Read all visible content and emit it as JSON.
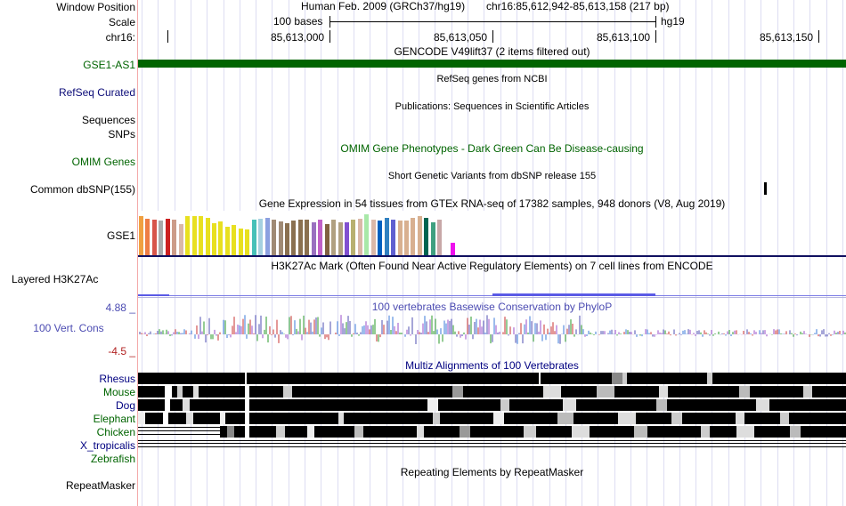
{
  "labels": {
    "window_position": "Window Position",
    "scale": "Scale",
    "chrom": "chr16:",
    "gse1_as1": "GSE1-AS1",
    "refseq": "RefSeq Curated",
    "sequences": "Sequences",
    "snps": "SNPs",
    "omim_genes": "OMIM Genes",
    "common_dbsnp": "Common dbSNP(155)",
    "gse1": "GSE1",
    "layered_h3k27ac": "Layered H3K27Ac",
    "cons_max": "4.88 _",
    "vert_cons": "100 Vert. Cons",
    "cons_min": "-4.5 _",
    "species": [
      {
        "name": "Rhesus",
        "color": "#000080"
      },
      {
        "name": "Mouse",
        "color": "#006400"
      },
      {
        "name": "Dog",
        "color": "#000080"
      },
      {
        "name": "Elephant",
        "color": "#006400"
      },
      {
        "name": "Chicken",
        "color": "#006400"
      },
      {
        "name": "X_tropicalis",
        "color": "#000080"
      },
      {
        "name": "Zebrafish",
        "color": "#006400"
      }
    ],
    "repeatmasker": "RepeatMasker"
  },
  "header": {
    "assembly": "Human Feb. 2009 (GRCh37/hg19)",
    "position": "chr16:85,612,942-85,613,158 (217 bp)",
    "scale_text": "100 bases",
    "scale_db": "hg19",
    "coords": [
      "85,613,000",
      "85,613,050",
      "85,613,100",
      "85,613,150"
    ]
  },
  "tracks": {
    "gencode_title": "GENCODE V49lift37 (2 items filtered out)",
    "refseq_title": "RefSeq genes from NCBI",
    "publications_title": "Publications: Sequences in Scientific Articles",
    "omim_title": "OMIM Gene Phenotypes - Dark Green Can Be Disease-causing",
    "dbsnp_title": "Short Genetic Variants from dbSNP release 155",
    "gtex_title": "Gene Expression in 54 tissues from GTEx RNA-seq of 17382 samples, 948 donors (V8, Aug 2019)",
    "h3k27ac_title": "H3K27Ac Mark (Often Found Near Active Regulatory Elements) on 7 cell lines from ENCODE",
    "cons_title": "100 vertebrates Basewise Conservation by PhyloP",
    "multiz_title": "Multiz Alignments of 100 Vertebrates",
    "repeatmasker_title": "Repeating Elements by RepeatMasker"
  },
  "colors": {
    "gencode": "#006400",
    "refseq_label": "#0c0c78",
    "omim": "#006400",
    "cons": "#4c4cb2",
    "h3k27ac": "#5a5ae6",
    "divider": "#f4aaaa"
  },
  "gtex_colors": [
    "#f0a040",
    "#ee7d44",
    "#d7554a",
    "#aaaaaa",
    "#cc2020",
    "#cc9b88",
    "#dab8a8",
    "#e8e020",
    "#e8e020",
    "#e8e020",
    "#e8e020",
    "#e8e020",
    "#e8e020",
    "#e8e020",
    "#e8e020",
    "#e8e020",
    "#e8e020",
    "#46c0b8",
    "#a6d0e0",
    "#8ca0e0",
    "#a08a74",
    "#a08a74",
    "#8a7050",
    "#8a7050",
    "#8a7050",
    "#8a7050",
    "#9a70c0",
    "#c060c8",
    "#806040",
    "#b0a080",
    "#b0a080",
    "#8050d0",
    "#b8b070",
    "#dab8a8",
    "#a8e8a8",
    "#dab8a8",
    "#0060c0",
    "#3080c0",
    "#6060d0",
    "#d8b090",
    "#d8b090",
    "#d8b090",
    "#d8b090",
    "#006450",
    "#3fa080",
    "#c8a8a8",
    "#ffffff",
    "#ee10ee"
  ],
  "gtex_values": [
    0.95,
    0.9,
    0.88,
    0.85,
    0.9,
    0.88,
    0.75,
    0.95,
    0.95,
    0.95,
    0.92,
    0.78,
    0.82,
    0.7,
    0.73,
    0.65,
    0.62,
    0.88,
    0.9,
    0.92,
    0.88,
    0.83,
    0.78,
    0.85,
    0.88,
    0.86,
    0.8,
    0.88,
    0.75,
    0.88,
    0.8,
    0.8,
    0.88,
    0.9,
    1.0,
    0.88,
    0.85,
    0.92,
    0.88,
    0.85,
    0.85,
    0.92,
    0.95,
    0.92,
    0.8,
    0.88,
    0.75,
    0.3
  ],
  "multiz_rows": [
    [
      [
        0,
        120,
        "#000"
      ],
      [
        120,
        2,
        "#fff"
      ],
      [
        122,
        328,
        "#000"
      ],
      [
        450,
        2,
        "#fff"
      ],
      [
        452,
        80,
        "#000"
      ],
      [
        532,
        12,
        "#888"
      ],
      [
        544,
        5,
        "#ccc"
      ],
      [
        549,
        90,
        "#000"
      ],
      [
        639,
        6,
        "#ccc"
      ],
      [
        645,
        150,
        "#000"
      ]
    ],
    [
      [
        0,
        30,
        "#000"
      ],
      [
        30,
        8,
        "#fff"
      ],
      [
        38,
        6,
        "#000"
      ],
      [
        44,
        6,
        "#ccc"
      ],
      [
        50,
        12,
        "#000"
      ],
      [
        62,
        6,
        "#ddd"
      ],
      [
        68,
        52,
        "#000"
      ],
      [
        120,
        5,
        "#fff"
      ],
      [
        125,
        38,
        "#000"
      ],
      [
        163,
        10,
        "#ccc"
      ],
      [
        173,
        180,
        "#000"
      ],
      [
        353,
        12,
        "#999"
      ],
      [
        365,
        90,
        "#000"
      ],
      [
        455,
        20,
        "#ddd"
      ],
      [
        475,
        40,
        "#000"
      ],
      [
        515,
        20,
        "#bbb"
      ],
      [
        535,
        50,
        "#000"
      ],
      [
        585,
        10,
        "#ddd"
      ],
      [
        595,
        80,
        "#000"
      ],
      [
        675,
        12,
        "#bbb"
      ],
      [
        687,
        60,
        "#000"
      ],
      [
        747,
        10,
        "#ccc"
      ],
      [
        757,
        38,
        "#000"
      ]
    ],
    [
      [
        0,
        30,
        "#000"
      ],
      [
        30,
        6,
        "#fff"
      ],
      [
        36,
        14,
        "#000"
      ],
      [
        50,
        8,
        "#ddd"
      ],
      [
        58,
        62,
        "#000"
      ],
      [
        120,
        5,
        "#fff"
      ],
      [
        125,
        200,
        "#000"
      ],
      [
        325,
        12,
        "#eee"
      ],
      [
        337,
        70,
        "#000"
      ],
      [
        407,
        10,
        "#ccc"
      ],
      [
        417,
        60,
        "#000"
      ],
      [
        477,
        15,
        "#ddd"
      ],
      [
        492,
        90,
        "#000"
      ],
      [
        582,
        12,
        "#bbb"
      ],
      [
        594,
        100,
        "#000"
      ],
      [
        694,
        15,
        "#ddd"
      ],
      [
        709,
        86,
        "#000"
      ]
    ],
    [
      [
        0,
        8,
        "#eee"
      ],
      [
        8,
        20,
        "#000"
      ],
      [
        28,
        6,
        "#fff"
      ],
      [
        34,
        20,
        "#000"
      ],
      [
        54,
        8,
        "#ddd"
      ],
      [
        62,
        30,
        "#000"
      ],
      [
        92,
        6,
        "#eee"
      ],
      [
        98,
        22,
        "#000"
      ],
      [
        120,
        5,
        "#fff"
      ],
      [
        125,
        100,
        "#000"
      ],
      [
        225,
        6,
        "#ddd"
      ],
      [
        231,
        100,
        "#000"
      ],
      [
        331,
        8,
        "#ccc"
      ],
      [
        339,
        60,
        "#000"
      ],
      [
        399,
        12,
        "#eee"
      ],
      [
        411,
        60,
        "#000"
      ],
      [
        471,
        18,
        "#bbb"
      ],
      [
        489,
        50,
        "#000"
      ],
      [
        539,
        20,
        "#ddd"
      ],
      [
        559,
        40,
        "#000"
      ],
      [
        599,
        12,
        "#ccc"
      ],
      [
        611,
        60,
        "#000"
      ],
      [
        671,
        10,
        "#ddd"
      ],
      [
        681,
        40,
        "#000"
      ],
      [
        721,
        10,
        "#ccc"
      ],
      [
        731,
        64,
        "#000"
      ]
    ],
    [
      [
        92,
        8,
        "#000"
      ],
      [
        100,
        8,
        "#888"
      ],
      [
        108,
        12,
        "#000"
      ],
      [
        120,
        5,
        "#fff"
      ],
      [
        125,
        30,
        "#000"
      ],
      [
        155,
        10,
        "#ccc"
      ],
      [
        165,
        25,
        "#000"
      ],
      [
        190,
        8,
        "#eee"
      ],
      [
        198,
        45,
        "#000"
      ],
      [
        243,
        10,
        "#bbb"
      ],
      [
        253,
        60,
        "#000"
      ],
      [
        313,
        8,
        "#ddd"
      ],
      [
        321,
        40,
        "#000"
      ],
      [
        361,
        12,
        "#999"
      ],
      [
        373,
        60,
        "#000"
      ],
      [
        433,
        14,
        "#ccc"
      ],
      [
        447,
        40,
        "#000"
      ],
      [
        487,
        20,
        "#ddd"
      ],
      [
        507,
        50,
        "#000"
      ],
      [
        557,
        15,
        "#bbb"
      ],
      [
        572,
        60,
        "#000"
      ],
      [
        632,
        10,
        "#ccc"
      ],
      [
        642,
        30,
        "#000"
      ],
      [
        672,
        20,
        "#ddd"
      ],
      [
        692,
        40,
        "#000"
      ],
      [
        732,
        12,
        "#bbb"
      ],
      [
        744,
        51,
        "#000"
      ]
    ]
  ]
}
